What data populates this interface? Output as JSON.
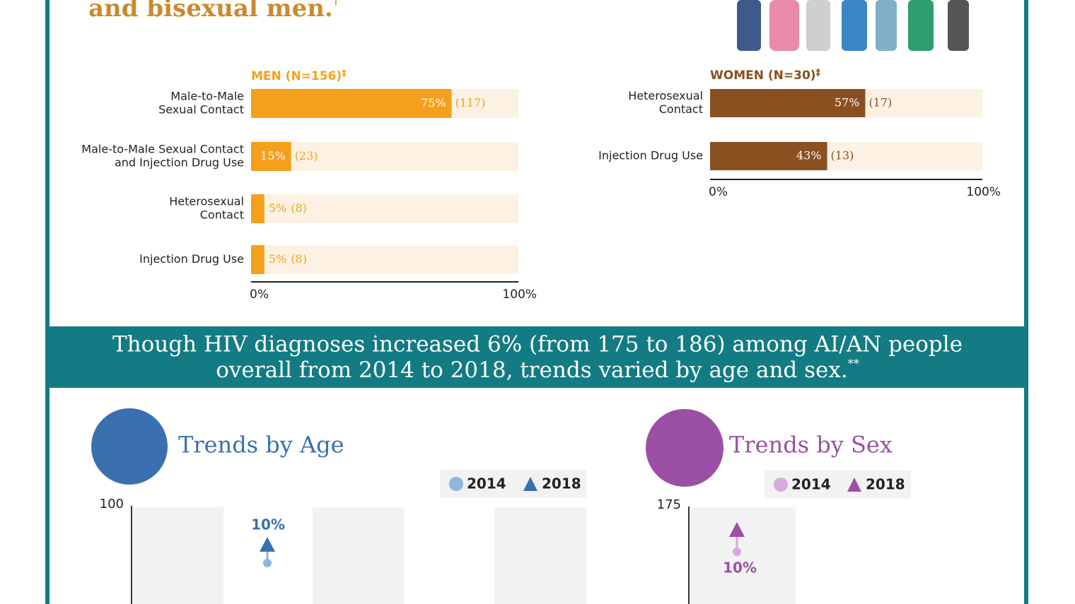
{
  "heading": {
    "text": "and bisexual men.",
    "mark": "†"
  },
  "men": {
    "title": "MEN (N=156)",
    "title_mark": "‡",
    "labels": [
      [
        "Male-to-Male",
        "Sexual Contact"
      ],
      [
        "Male-to-Male Sexual Contact",
        "and Injection Drug Use"
      ],
      [
        "Heterosexual",
        "Contact"
      ],
      [
        "Injection Drug Use"
      ]
    ],
    "values": [
      75,
      15,
      5,
      5
    ],
    "value_labels": [
      "75%",
      "15%",
      "5%",
      "5%"
    ],
    "count_labels": [
      "(117)",
      "(23)",
      "(8)",
      "(8)"
    ],
    "xlim": [
      0,
      100
    ],
    "xticks": [
      {
        "value": 0,
        "label": "0%"
      },
      {
        "value": 100,
        "label": "100%"
      }
    ],
    "color": "#f5a01a"
  },
  "women": {
    "title": "WOMEN (N=30)",
    "title_mark": "‡",
    "labels": [
      [
        "Heterosexual",
        "Contact"
      ],
      [
        "Injection Drug Use"
      ]
    ],
    "values": [
      57,
      43
    ],
    "value_labels": [
      "57%",
      "43%"
    ],
    "count_labels": [
      "(17)",
      "(13)"
    ],
    "xlim": [
      0,
      100
    ],
    "xticks": [
      {
        "value": 0,
        "label": "0%"
      },
      {
        "value": 100,
        "label": "100%"
      }
    ],
    "color": "#8a5020"
  },
  "banner": {
    "lines": [
      "Though HIV diagnoses increased 6% (from 175 to 186) among AI/AN people",
      "overall from 2014 to 2018, trends varied by age and sex."
    ],
    "mark": "**"
  },
  "age": {
    "title": "Trends by Age",
    "legend": [
      "2014",
      "2018"
    ],
    "ytick": "100",
    "annotation": "10%"
  },
  "sex": {
    "title": "Trends by Sex",
    "legend": [
      "2014",
      "2018"
    ],
    "ytick": "175",
    "annotation": "10%"
  }
}
